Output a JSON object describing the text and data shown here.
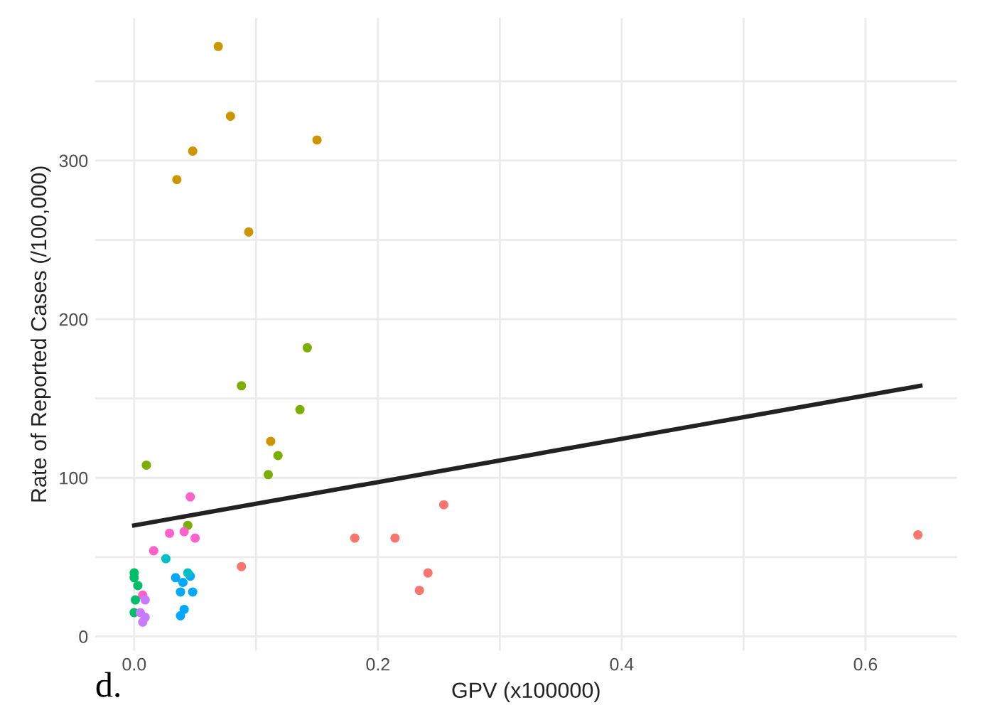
{
  "chart_data": {
    "type": "scatter",
    "xlabel": "GPV (x100000)",
    "ylabel": "Rate of Reported Cases (/100,000)",
    "annotations": [
      "d."
    ],
    "xlim": [
      -0.032,
      0.675
    ],
    "ylim": [
      -9,
      390
    ],
    "xticks": [
      {
        "value": 0,
        "label": "0.0"
      },
      {
        "value": 0.1,
        "label": null
      },
      {
        "value": 0.2,
        "label": "0.2"
      },
      {
        "value": 0.3,
        "label": null
      },
      {
        "value": 0.4,
        "label": "0.4"
      },
      {
        "value": 0.5,
        "label": null
      },
      {
        "value": 0.6,
        "label": "0.6"
      }
    ],
    "yticks": [
      0,
      {
        "value": 50,
        "label": null
      },
      100,
      {
        "value": 150,
        "label": null
      },
      200,
      {
        "value": 250,
        "label": null
      },
      300,
      {
        "value": 350,
        "label": null
      }
    ],
    "grid": true,
    "series": [
      {
        "color": "#f8766d",
        "x": [
          0.088,
          0.181,
          0.214,
          0.254,
          0.241,
          0.234,
          0.643
        ],
        "values": [
          44,
          62,
          62,
          83,
          40,
          29,
          64
        ]
      },
      {
        "color": "#cd9600",
        "x": [
          0.069,
          0.079,
          0.048,
          0.035,
          0.15,
          0.094,
          0.112
        ],
        "values": [
          372,
          328,
          306,
          288,
          313,
          255,
          123
        ]
      },
      {
        "color": "#7cae00",
        "x": [
          0.142,
          0.088,
          0.136,
          0.01,
          0.118,
          0.11,
          0.044
        ],
        "values": [
          182,
          158,
          143,
          108,
          114,
          102,
          70
        ]
      },
      {
        "color": "#00be67",
        "x": [
          0.0,
          0.0,
          0.003,
          0.001,
          0.0
        ],
        "values": [
          40,
          37,
          32,
          23,
          15
        ]
      },
      {
        "color": "#00bfc4",
        "x": [
          0.026,
          0.044
        ],
        "values": [
          49,
          40
        ]
      },
      {
        "color": "#00a9ff",
        "x": [
          0.034,
          0.04,
          0.046,
          0.038,
          0.048,
          0.041,
          0.038
        ],
        "values": [
          37,
          34,
          38,
          28,
          28,
          17,
          13
        ]
      },
      {
        "color": "#c77cff",
        "x": [
          0.009,
          0.005,
          0.009,
          0.007
        ],
        "values": [
          23,
          15,
          12,
          9
        ]
      },
      {
        "color": "#ff61cc",
        "x": [
          0.046,
          0.029,
          0.016,
          0.041,
          0.048,
          0.05,
          0.007
        ],
        "values": [
          88,
          65,
          54,
          66,
          null,
          62,
          26
        ]
      },
      {
        "type": "line",
        "marker": "none",
        "color": "#222222",
        "x": [
          0.0,
          0.645
        ],
        "values": [
          70,
          158
        ]
      }
    ]
  }
}
